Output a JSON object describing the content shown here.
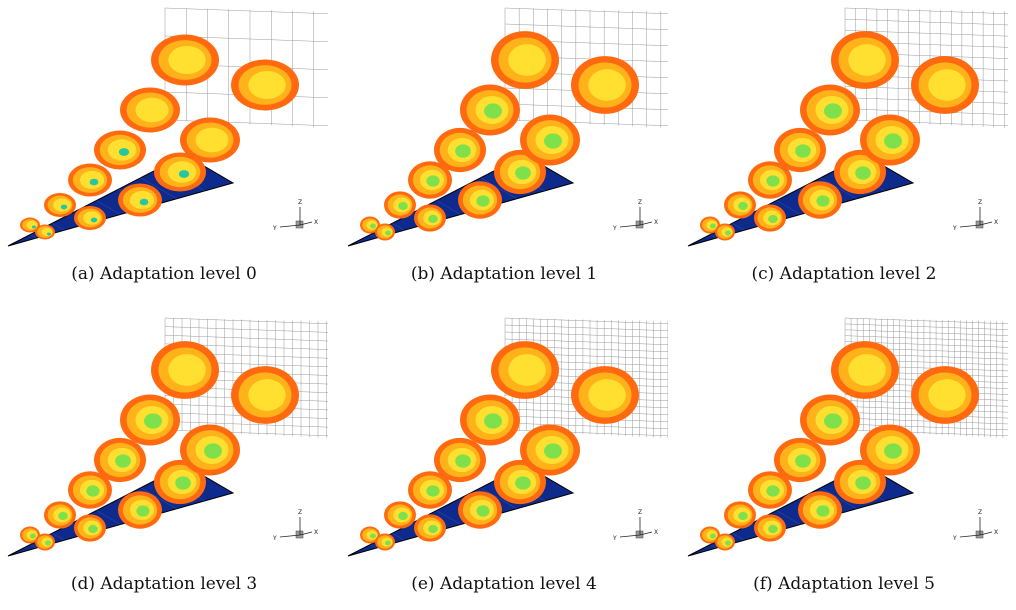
{
  "figure": {
    "panels": [
      {
        "caption": "(a) Adaptation level 0",
        "level": 0
      },
      {
        "caption": "(b) Adaptation level 1",
        "level": 1
      },
      {
        "caption": "(c) Adaptation level 2",
        "level": 2
      },
      {
        "caption": "(d) Adaptation level 3",
        "level": 3
      },
      {
        "caption": "(e) Adaptation level 4",
        "level": 4
      },
      {
        "caption": "(f) Adaptation level 5",
        "level": 5
      }
    ],
    "axis_labels": {
      "x": "X",
      "y": "Y",
      "z": "Z"
    },
    "colors": {
      "wing": "#0d2a8c",
      "wing_edge": "#000000",
      "contour_outer": "#ff6a10",
      "contour_mid": "#ffb21a",
      "contour_inner": "#ffe030",
      "contour_core": "#7ee04a",
      "contour_deep": "#26c7a0",
      "grid": "#555555"
    }
  }
}
